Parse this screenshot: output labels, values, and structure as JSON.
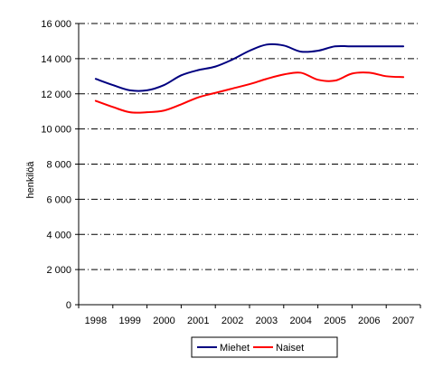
{
  "chart_data": {
    "type": "line",
    "title": "",
    "xlabel": "",
    "ylabel": "henkilöä",
    "ylim": [
      0,
      16000
    ],
    "yticks": [
      0,
      2000,
      4000,
      6000,
      8000,
      10000,
      12000,
      14000,
      16000
    ],
    "ytick_labels": [
      "0",
      "2 000",
      "4 000",
      "6 000",
      "8 000",
      "10 000",
      "12 000",
      "14 000",
      "16 000"
    ],
    "categories": [
      "1998",
      "1999",
      "2000",
      "2001",
      "2002",
      "2003",
      "2004",
      "2005",
      "2006",
      "2007"
    ],
    "grid": true,
    "legend_position": "bottom",
    "x": [
      1998.0,
      1998.5,
      1999.0,
      1999.5,
      2000.0,
      2000.5,
      2001.0,
      2001.5,
      2002.0,
      2002.5,
      2003.0,
      2003.5,
      2004.0,
      2004.5,
      2005.0,
      2005.5,
      2006.0,
      2006.5,
      2007.0
    ],
    "series": [
      {
        "name": "Miehet",
        "color": "#000080",
        "values": [
          12850,
          12500,
          12200,
          12200,
          12500,
          13050,
          13350,
          13550,
          13950,
          14450,
          14800,
          14750,
          14400,
          14450,
          14700,
          14700,
          14700,
          14700,
          14700
        ]
      },
      {
        "name": "Naiset",
        "color": "#ff0000",
        "values": [
          11600,
          11250,
          10950,
          10950,
          11050,
          11400,
          11800,
          12050,
          12300,
          12550,
          12850,
          13100,
          13200,
          12800,
          12750,
          13150,
          13200,
          13000,
          12950
        ]
      }
    ]
  }
}
